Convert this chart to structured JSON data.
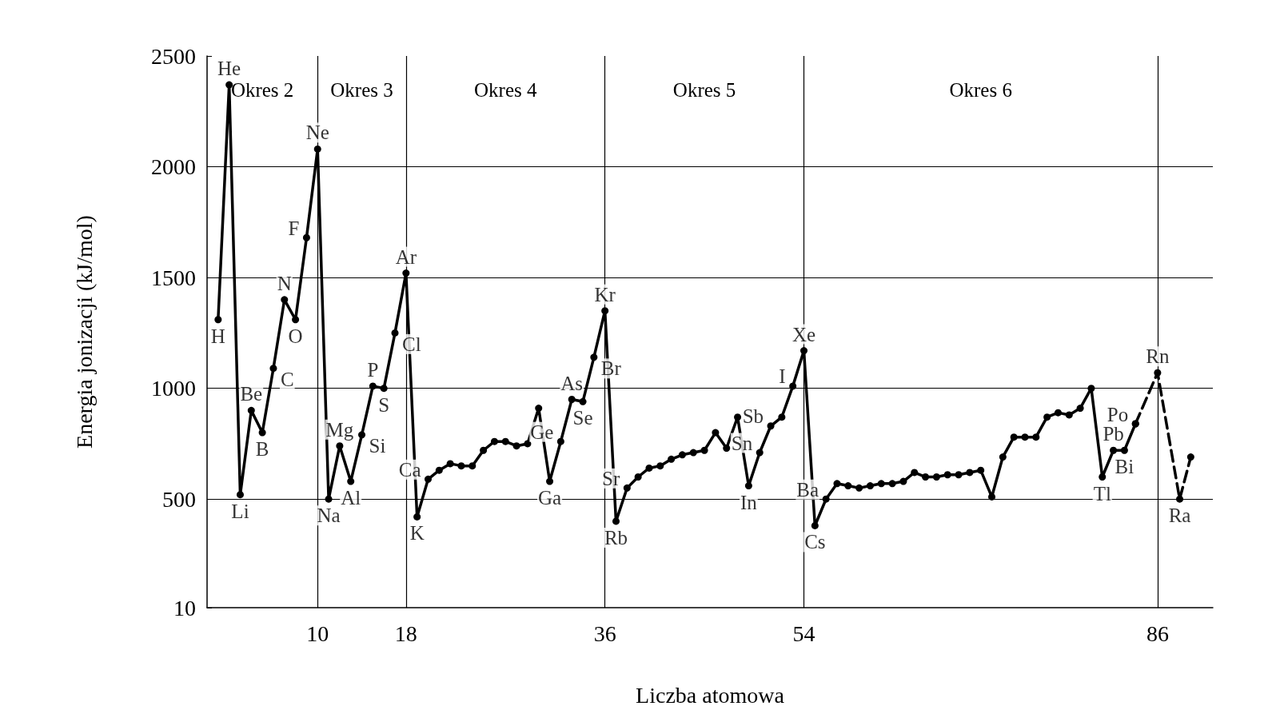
{
  "chart_data": {
    "type": "line",
    "xlabel": "Liczba atomowa",
    "ylabel": "Energia jonizacji (kJ/mol)",
    "xlim": [
      0,
      91
    ],
    "xticks": [
      10,
      18,
      36,
      54,
      86
    ],
    "ylim": [
      10,
      2500
    ],
    "yticks": [
      10,
      500,
      1000,
      1500,
      2000,
      2500
    ],
    "grid": "y",
    "marker": "circle",
    "series": [
      {
        "color": "#000000",
        "line_style": "solid",
        "x": [
          1,
          2,
          3,
          4,
          5,
          6,
          7,
          8,
          9,
          10,
          11,
          12,
          13,
          14,
          15,
          16,
          17,
          18,
          19,
          20,
          21,
          22,
          23,
          24,
          25,
          26,
          27,
          28,
          29,
          30,
          31,
          32,
          33,
          34,
          35,
          36,
          37,
          38,
          39,
          40,
          41,
          42,
          43,
          44,
          45,
          46,
          47,
          48,
          49,
          50,
          51,
          52,
          53,
          54,
          55,
          56,
          57,
          58,
          59,
          60,
          61,
          62,
          63,
          64,
          65,
          66,
          67,
          68,
          69,
          70,
          71,
          72,
          73,
          74,
          75,
          76,
          77,
          78,
          79,
          80,
          81,
          82,
          83,
          84
        ],
        "values": [
          1310,
          2370,
          520,
          900,
          800,
          1090,
          1400,
          1310,
          1680,
          2080,
          500,
          740,
          580,
          790,
          1010,
          1000,
          1250,
          1520,
          420,
          590,
          630,
          660,
          650,
          650,
          720,
          760,
          760,
          740,
          750,
          910,
          580,
          760,
          950,
          940,
          1140,
          1350,
          400,
          550,
          600,
          640,
          650,
          680,
          700,
          710,
          720,
          800,
          730,
          870,
          560,
          710,
          830,
          870,
          1010,
          1170,
          380,
          500,
          570,
          560,
          550,
          560,
          570,
          570,
          580,
          620,
          600,
          600,
          610,
          610,
          620,
          630,
          510,
          690,
          780,
          780,
          780,
          870,
          890,
          880,
          910,
          1000,
          600,
          720,
          720,
          840
        ]
      },
      {
        "color": "#000000",
        "line_style": "dashed",
        "x": [
          84,
          86,
          88,
          89
        ],
        "values": [
          840,
          1070,
          500,
          690
        ]
      }
    ],
    "ref_lines": [
      {
        "axis": "x",
        "value": 10
      },
      {
        "axis": "x",
        "value": 18
      },
      {
        "axis": "x",
        "value": 36
      },
      {
        "axis": "x",
        "value": 54
      },
      {
        "axis": "x",
        "value": 86
      }
    ],
    "annotations": [
      "Okres 2",
      "Okres 3",
      "Okres 4",
      "Okres 5",
      "Okres 6",
      {
        "text": "H",
        "x": 1,
        "y": 1310
      },
      {
        "text": "He",
        "x": 2,
        "y": 2370
      },
      {
        "text": "Li",
        "x": 3,
        "y": 520
      },
      {
        "text": "Be",
        "x": 4,
        "y": 900
      },
      {
        "text": "B",
        "x": 5,
        "y": 800
      },
      {
        "text": "C",
        "x": 6,
        "y": 1090
      },
      {
        "text": "N",
        "x": 7,
        "y": 1400
      },
      {
        "text": "O",
        "x": 8,
        "y": 1310
      },
      {
        "text": "F",
        "x": 9,
        "y": 1680
      },
      {
        "text": "Ne",
        "x": 10,
        "y": 2080
      },
      {
        "text": "Na",
        "x": 11,
        "y": 500
      },
      {
        "text": "Mg",
        "x": 12,
        "y": 740
      },
      {
        "text": "Al",
        "x": 13,
        "y": 580
      },
      {
        "text": "Si",
        "x": 14,
        "y": 790
      },
      {
        "text": "P",
        "x": 15,
        "y": 1010
      },
      {
        "text": "S",
        "x": 16,
        "y": 1000
      },
      {
        "text": "Cl",
        "x": 17,
        "y": 1250
      },
      {
        "text": "Ar",
        "x": 18,
        "y": 1520
      },
      {
        "text": "K",
        "x": 19,
        "y": 420
      },
      {
        "text": "Ca",
        "x": 20,
        "y": 590
      },
      {
        "text": "Ga",
        "x": 31,
        "y": 580
      },
      {
        "text": "Ge",
        "x": 32,
        "y": 760
      },
      {
        "text": "As",
        "x": 33,
        "y": 950
      },
      {
        "text": "Se",
        "x": 34,
        "y": 940
      },
      {
        "text": "Br",
        "x": 35,
        "y": 1140
      },
      {
        "text": "Kr",
        "x": 36,
        "y": 1350
      },
      {
        "text": "Rb",
        "x": 37,
        "y": 400
      },
      {
        "text": "Sr",
        "x": 38,
        "y": 550
      },
      {
        "text": "In",
        "x": 49,
        "y": 560
      },
      {
        "text": "Sn",
        "x": 50,
        "y": 710
      },
      {
        "text": "Sb",
        "x": 51,
        "y": 830
      },
      {
        "text": "I",
        "x": 53,
        "y": 1010
      },
      {
        "text": "Xe",
        "x": 54,
        "y": 1170
      },
      {
        "text": "Cs",
        "x": 55,
        "y": 380
      },
      {
        "text": "Ba",
        "x": 56,
        "y": 500
      },
      {
        "text": "Tl",
        "x": 81,
        "y": 600
      },
      {
        "text": "Pb",
        "x": 82,
        "y": 720
      },
      {
        "text": "Bi",
        "x": 83,
        "y": 720
      },
      {
        "text": "Po",
        "x": 84,
        "y": 840
      },
      {
        "text": "Rn",
        "x": 86,
        "y": 1070
      },
      {
        "text": "Ra",
        "x": 88,
        "y": 500
      }
    ]
  }
}
